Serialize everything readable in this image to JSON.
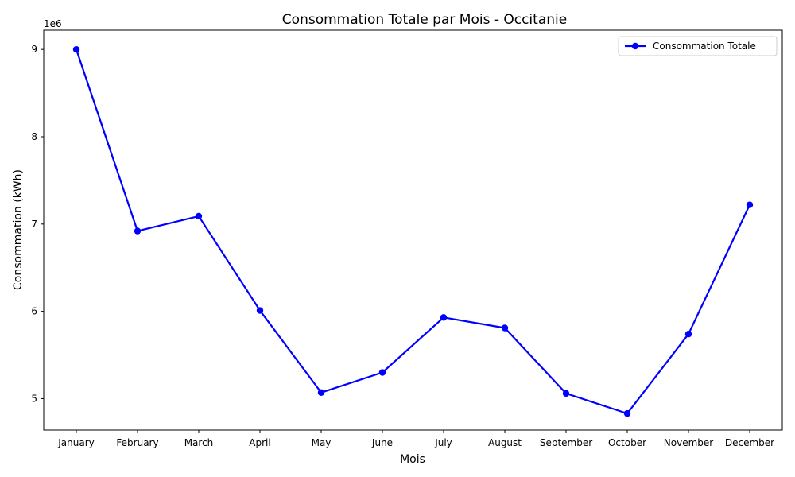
{
  "chart_data": {
    "type": "line",
    "title": "Consommation Totale par Mois - Occitanie",
    "xlabel": "Mois",
    "ylabel": "Consommation (kWh)",
    "y_offset_label": "1e6",
    "categories": [
      "January",
      "February",
      "March",
      "April",
      "May",
      "June",
      "July",
      "August",
      "September",
      "October",
      "November",
      "December"
    ],
    "series": [
      {
        "name": "Consommation Totale",
        "color": "#0000ff",
        "marker": "circle",
        "values": [
          9000000,
          6920000,
          7090000,
          6010000,
          5070000,
          5300000,
          5930000,
          5810000,
          5060000,
          4830000,
          5740000,
          7220000
        ]
      }
    ],
    "yticks": [
      5000000,
      6000000,
      7000000,
      8000000,
      9000000
    ],
    "ytick_labels": [
      "5",
      "6",
      "7",
      "8",
      "9"
    ],
    "ylim": [
      4640000,
      9220000
    ],
    "grid": false,
    "legend_position": "top-right"
  }
}
